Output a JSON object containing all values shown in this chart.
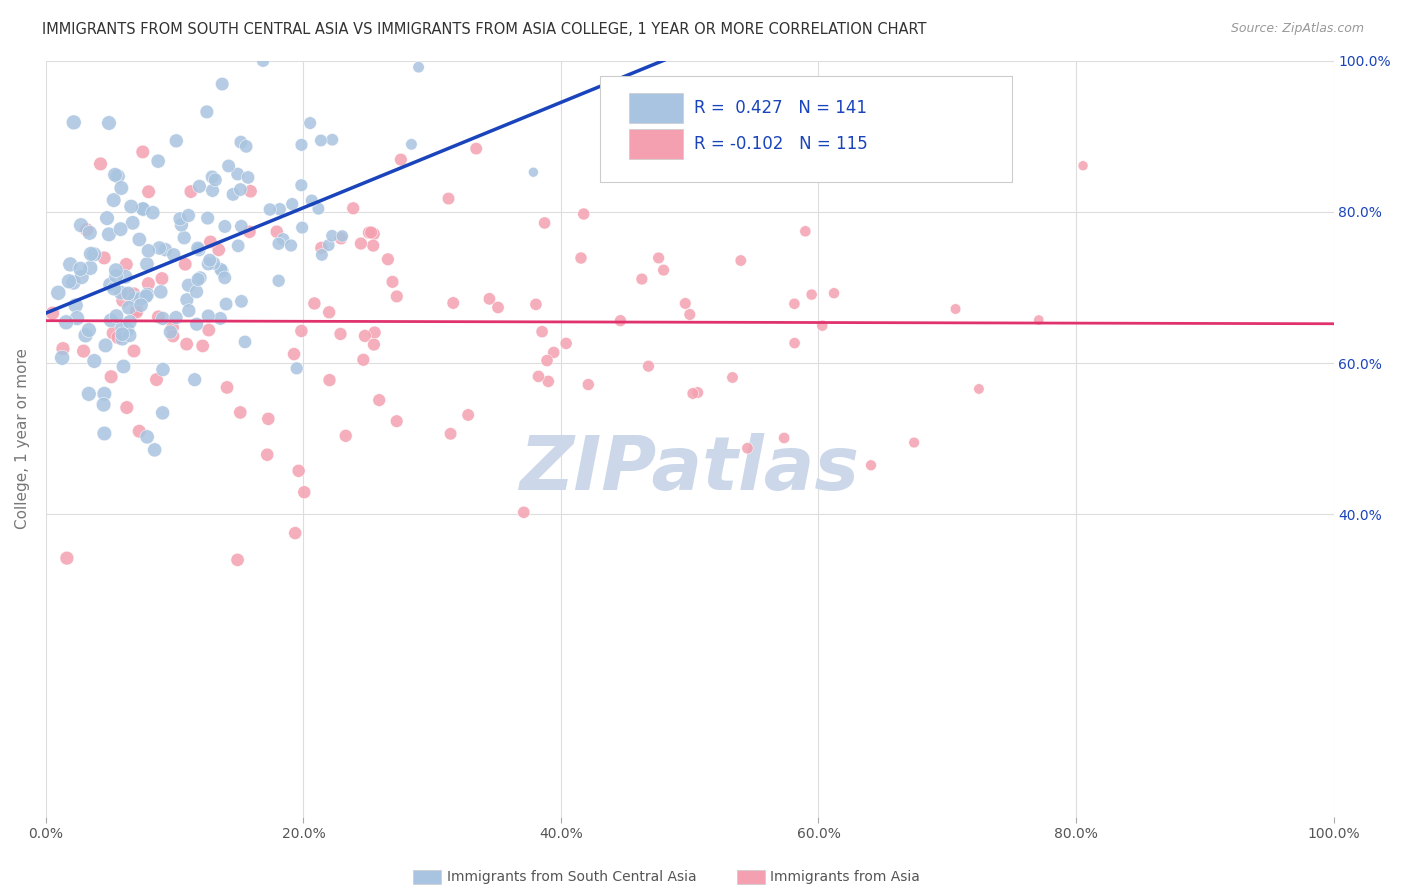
{
  "title": "IMMIGRANTS FROM SOUTH CENTRAL ASIA VS IMMIGRANTS FROM ASIA COLLEGE, 1 YEAR OR MORE CORRELATION CHART",
  "source": "Source: ZipAtlas.com",
  "ylabel": "College, 1 year or more",
  "legend_label1": "Immigrants from South Central Asia",
  "legend_label2": "Immigrants from Asia",
  "R1": 0.427,
  "N1": 141,
  "R2": -0.102,
  "N2": 115,
  "blue_color": "#a8c4e0",
  "pink_color": "#f4a0b0",
  "blue_line_color": "#1a44bb",
  "pink_line_color": "#e0336e",
  "blue_text_color": "#1a44bb",
  "watermark_color": "#ccd8ea",
  "background_color": "#ffffff",
  "grid_color": "#dddddd",
  "title_color": "#333333",
  "xlim": [
    0.0,
    1.0
  ],
  "ylim": [
    0.0,
    1.0
  ],
  "seed": 42
}
